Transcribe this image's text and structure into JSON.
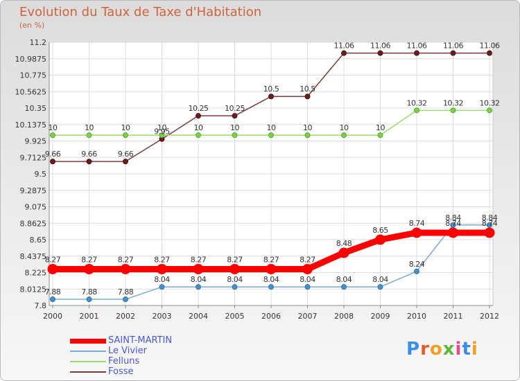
{
  "title": "Evolution du Taux de Taxe d'Habitation",
  "subtitle": "(en %)",
  "brand": "Proxiti",
  "chart_data": {
    "type": "line",
    "title": "Evolution du Taux de Taxe d'Habitation",
    "ylabel": "(en %)",
    "x": [
      "2000",
      "2001",
      "2002",
      "2003",
      "2004",
      "2005",
      "2006",
      "2007",
      "2008",
      "2009",
      "2010",
      "2011",
      "2012"
    ],
    "ylim": [
      7.8,
      11.2
    ],
    "yticks": [
      "11.2",
      "10.9875",
      "10.775",
      "10.5625",
      "10.35",
      "10.1375",
      "9.925",
      "9.7125",
      "9.5",
      "9.2875",
      "9.075",
      "8.8625",
      "8.65",
      "8.4375",
      "8.225",
      "8.0125",
      "7.8"
    ],
    "grid": true,
    "legend": "bottom-left",
    "series": [
      {
        "name": "SAINT-MARTIN",
        "color": "#ff0000",
        "values": [
          8.27,
          8.27,
          8.27,
          8.27,
          8.27,
          8.27,
          8.27,
          8.27,
          8.48,
          8.65,
          8.74,
          8.74,
          8.74
        ],
        "labels": [
          "8.27",
          "8.27",
          "8.27",
          "8.27",
          "8.27",
          "8.27",
          "8.27",
          "8.27",
          "8.48",
          "8.65",
          "8.74",
          "8.74",
          "8.74"
        ]
      },
      {
        "name": "Le Vivier",
        "color": "#7aaad6",
        "values": [
          7.88,
          7.88,
          7.88,
          8.04,
          8.04,
          8.04,
          8.04,
          8.04,
          8.04,
          8.04,
          8.24,
          8.84,
          8.84
        ],
        "labels": [
          "7.88",
          "7.88",
          "7.88",
          "8.04",
          "8.04",
          "8.04",
          "8.04",
          "8.04",
          "8.04",
          "8.04",
          "8.24",
          "8.84",
          "8.84"
        ]
      },
      {
        "name": "Felluns",
        "color": "#99dd66",
        "values": [
          10,
          10,
          10,
          10,
          10,
          10,
          10,
          10,
          10,
          10,
          10.32,
          10.32,
          10.32
        ],
        "labels": [
          "10",
          "10",
          "10",
          "10",
          "10",
          "10",
          "10",
          "10",
          "10",
          "10",
          "10.32",
          "10.32",
          "10.32"
        ]
      },
      {
        "name": "Fosse",
        "color": "#7a3a3a",
        "values": [
          9.66,
          9.66,
          9.66,
          9.95,
          10.25,
          10.25,
          10.5,
          10.5,
          11.06,
          11.06,
          11.06,
          11.06,
          11.06
        ],
        "labels": [
          "9.66",
          "9.66",
          "9.66",
          "9.95",
          "10.25",
          "10.25",
          "10.5",
          "10.5",
          "11.06",
          "11.06",
          "11.06",
          "11.06",
          "11.06"
        ]
      }
    ]
  }
}
